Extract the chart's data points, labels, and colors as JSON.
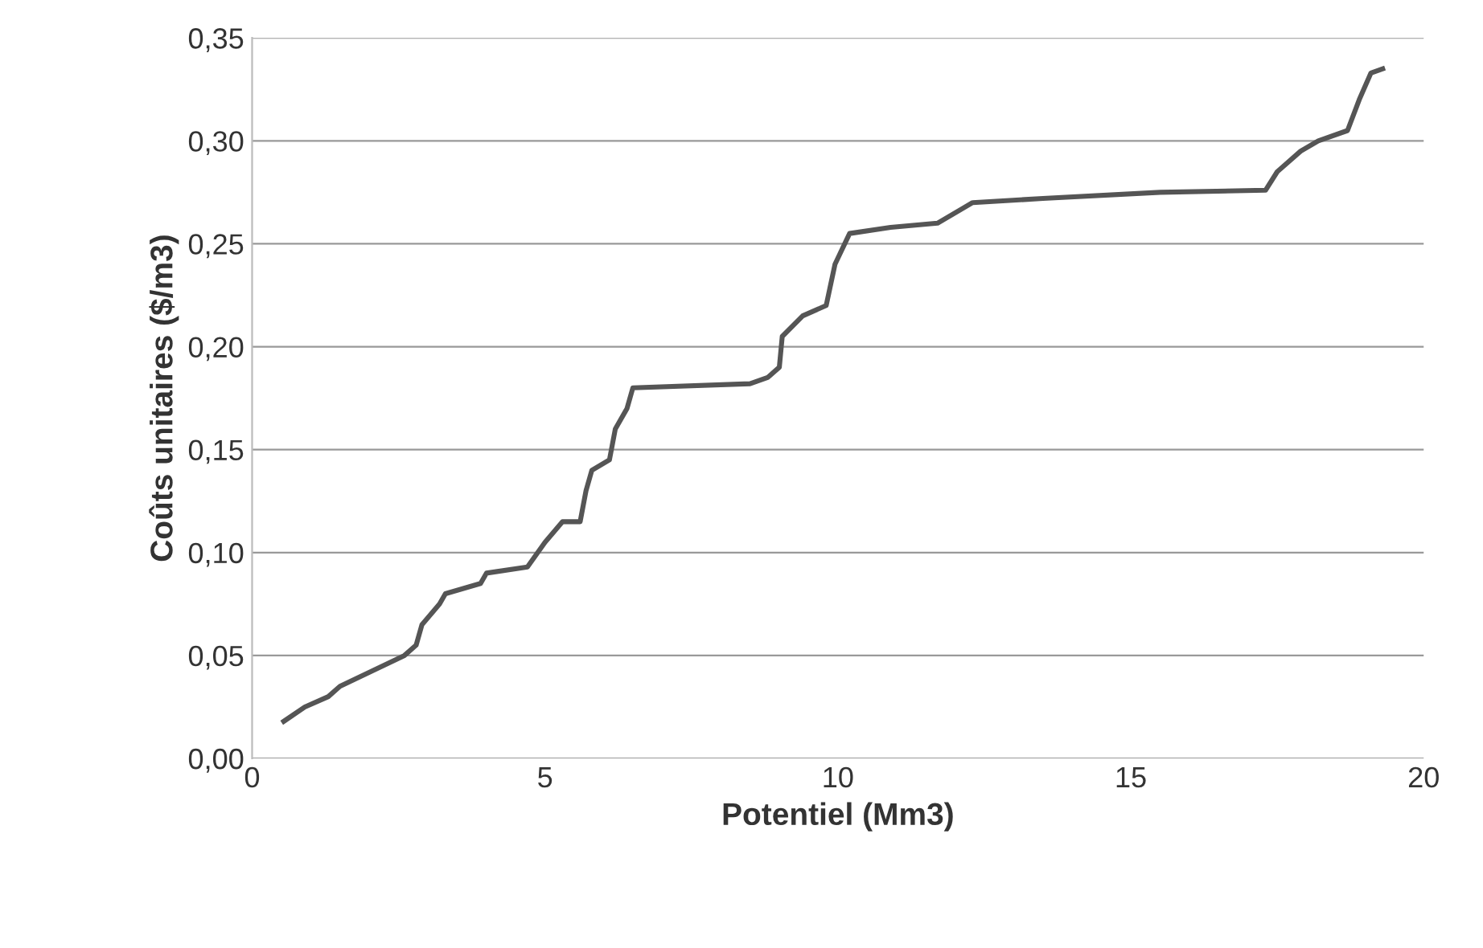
{
  "chart_data": {
    "type": "line",
    "xlabel": "Potentiel (Mm3)",
    "ylabel": "Coûts unitaires ($/m3)",
    "x": [
      0.54,
      0.9,
      1.3,
      1.5,
      2.6,
      2.8,
      2.9,
      3.2,
      3.3,
      3.9,
      4.0,
      4.7,
      5.0,
      5.3,
      5.6,
      5.7,
      5.8,
      6.1,
      6.2,
      6.4,
      6.5,
      8.5,
      8.8,
      9.0,
      9.05,
      9.4,
      9.8,
      9.95,
      10.2,
      10.9,
      11.7,
      12.3,
      13.5,
      15.5,
      17.3,
      17.5,
      17.9,
      18.2,
      18.7,
      18.9,
      19.1,
      19.3
    ],
    "series": [
      {
        "color": "#555555",
        "values": [
          0.018,
          0.025,
          0.03,
          0.035,
          0.05,
          0.055,
          0.065,
          0.075,
          0.08,
          0.085,
          0.09,
          0.093,
          0.105,
          0.115,
          0.115,
          0.13,
          0.14,
          0.145,
          0.16,
          0.17,
          0.18,
          0.182,
          0.185,
          0.19,
          0.205,
          0.215,
          0.22,
          0.24,
          0.255,
          0.258,
          0.26,
          0.27,
          0.272,
          0.275,
          0.276,
          0.285,
          0.295,
          0.3,
          0.305,
          0.32,
          0.333,
          0.335
        ]
      }
    ],
    "xlim": [
      0,
      20
    ],
    "xticks": [
      0,
      5,
      10,
      15,
      20
    ],
    "ylim": [
      0,
      0.35
    ],
    "yticks": [
      {
        "value": 0,
        "label": "0,00"
      },
      {
        "value": 0.05,
        "label": "0,05"
      },
      {
        "value": 0.1,
        "label": "0,10"
      },
      {
        "value": 0.15,
        "label": "0,15"
      },
      {
        "value": 0.2,
        "label": "0,20"
      },
      {
        "value": 0.25,
        "label": "0,25"
      },
      {
        "value": 0.3,
        "label": "0,30"
      },
      {
        "value": 0.35,
        "label": "0,35"
      }
    ],
    "grid": "y",
    "marker": "none",
    "line_style": "solid"
  }
}
